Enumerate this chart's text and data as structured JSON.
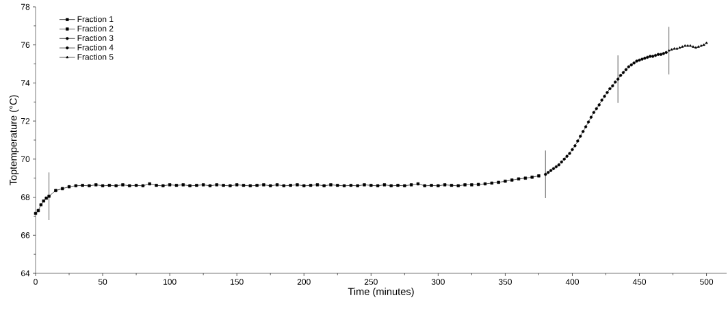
{
  "chart_data": {
    "type": "line",
    "xlabel": "Time (minutes)",
    "ylabel": "Toptemperature (°C)",
    "xlim": [
      0,
      515
    ],
    "xticks": [
      0,
      50,
      100,
      150,
      200,
      250,
      300,
      350,
      400,
      450,
      500
    ],
    "ylim": [
      64,
      78
    ],
    "yticks": [
      64,
      66,
      68,
      70,
      72,
      74,
      76,
      78
    ],
    "grid": false,
    "legend": "top left",
    "line_style": "solid",
    "series": [
      {
        "name": "Fraction 1",
        "color": "#000000",
        "marker": "square",
        "x": [
          0,
          2,
          4,
          6,
          8
        ],
        "values": [
          67.15,
          67.3,
          67.6,
          67.8,
          67.95
        ]
      },
      {
        "name": "Fraction 2",
        "color": "#000000",
        "marker": "square",
        "x": [
          10,
          15,
          20,
          25,
          30,
          35,
          40,
          45,
          50,
          55,
          60,
          65,
          70,
          75,
          80,
          85,
          90,
          95,
          100,
          105,
          110,
          115,
          120,
          125,
          130,
          135,
          140,
          145,
          150,
          155,
          160,
          165,
          170,
          175,
          180,
          185,
          190,
          195,
          200,
          205,
          210,
          215,
          220,
          225,
          230,
          235,
          240,
          245,
          250,
          255,
          260,
          265,
          270,
          275,
          280,
          285,
          290,
          295,
          300,
          305,
          310,
          315,
          320,
          325,
          330,
          335,
          340,
          345,
          350,
          355,
          360,
          365,
          370,
          375
        ],
        "values": [
          68.05,
          68.35,
          68.45,
          68.55,
          68.6,
          68.62,
          68.6,
          68.65,
          68.6,
          68.62,
          68.6,
          68.65,
          68.6,
          68.62,
          68.6,
          68.7,
          68.62,
          68.6,
          68.65,
          68.62,
          68.65,
          68.6,
          68.62,
          68.65,
          68.6,
          68.65,
          68.62,
          68.6,
          68.65,
          68.62,
          68.6,
          68.62,
          68.65,
          68.6,
          68.65,
          68.6,
          68.62,
          68.65,
          68.6,
          68.62,
          68.65,
          68.6,
          68.65,
          68.62,
          68.6,
          68.62,
          68.6,
          68.65,
          68.62,
          68.6,
          68.65,
          68.6,
          68.62,
          68.6,
          68.65,
          68.7,
          68.6,
          68.62,
          68.6,
          68.65,
          68.62,
          68.6,
          68.65,
          68.65,
          68.67,
          68.7,
          68.74,
          68.78,
          68.84,
          68.9,
          68.96,
          69.0,
          69.05,
          69.12
        ]
      },
      {
        "name": "Fraction 3",
        "color": "#000000",
        "marker": "circle",
        "x": [
          380,
          382,
          384,
          386,
          388,
          390,
          392,
          394,
          396,
          398,
          400,
          402,
          404,
          406,
          408,
          410,
          412,
          414,
          416,
          418,
          420,
          422,
          424,
          426,
          428,
          430,
          432
        ],
        "values": [
          69.2,
          69.3,
          69.4,
          69.5,
          69.6,
          69.7,
          69.85,
          70.0,
          70.15,
          70.3,
          70.5,
          70.7,
          70.95,
          71.2,
          71.45,
          71.7,
          71.95,
          72.2,
          72.45,
          72.65,
          72.85,
          73.1,
          73.3,
          73.5,
          73.7,
          73.85,
          74.05
        ]
      },
      {
        "name": "Fraction 4",
        "color": "#000000",
        "marker": "circle",
        "x": [
          434,
          436,
          438,
          440,
          442,
          444,
          446,
          448,
          450,
          452,
          454,
          456,
          458,
          460,
          462,
          464,
          466,
          468,
          470
        ],
        "values": [
          74.2,
          74.4,
          74.55,
          74.7,
          74.85,
          74.95,
          75.05,
          75.15,
          75.2,
          75.25,
          75.3,
          75.35,
          75.4,
          75.4,
          75.45,
          75.5,
          75.5,
          75.55,
          75.6
        ]
      },
      {
        "name": "Fraction 5",
        "color": "#000000",
        "marker": "triangle",
        "x": [
          472,
          474,
          476,
          478,
          480,
          482,
          484,
          486,
          488,
          490,
          492,
          494,
          496,
          498,
          500
        ],
        "values": [
          75.7,
          75.75,
          75.8,
          75.8,
          75.85,
          75.9,
          75.95,
          75.95,
          75.95,
          75.9,
          75.85,
          75.9,
          75.95,
          76.0,
          76.1
        ]
      }
    ],
    "ref_lines": [
      {
        "axis": "x",
        "value": 10,
        "color": "#333333"
      },
      {
        "axis": "x",
        "value": 380,
        "color": "#333333"
      },
      {
        "axis": "x",
        "value": 434,
        "color": "#333333"
      },
      {
        "axis": "x",
        "value": 472,
        "color": "#333333"
      }
    ]
  }
}
